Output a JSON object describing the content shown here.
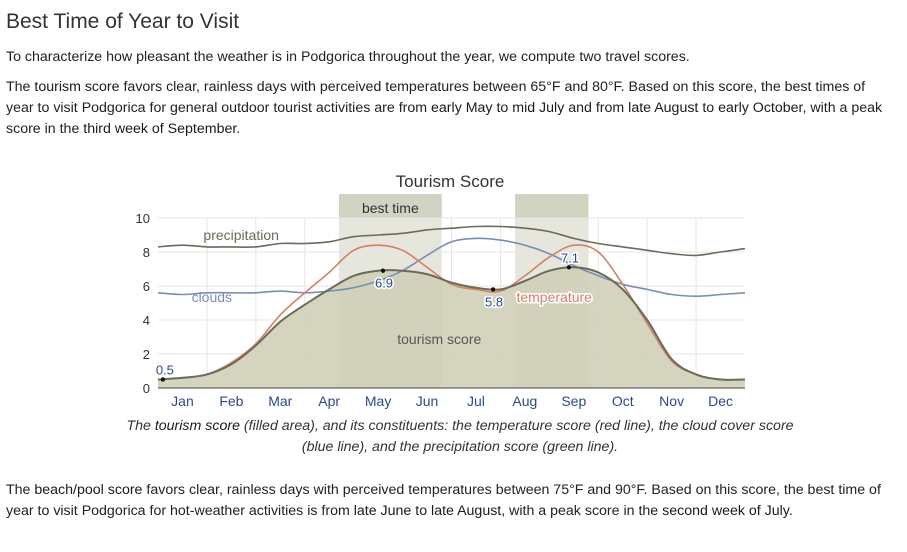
{
  "heading": "Best Time of Year to Visit",
  "intro": [
    "To characterize how pleasant the weather is in Podgorica throughout the year, we compute two travel scores."
  ],
  "tourism_paragraph": [
    "The ",
    "tourism score",
    " favors clear, rainless days with perceived temperatures between 65°F and 80°F. Based on this score, the best times of year to visit Podgorica for general outdoor tourist activities are from ",
    "early May",
    " to ",
    "mid July",
    " and from ",
    "late August",
    " to ",
    "early October",
    ", with a peak score in the ",
    "third week of September",
    "."
  ],
  "caption": [
    "The ",
    "tourism score",
    " (filled area), and its constituents: the temperature score (red line), the cloud cover score (blue line), and the precipitation score (green line)."
  ],
  "beach_paragraph": [
    "The ",
    "beach/pool score",
    " favors clear, rainless days with perceived temperatures between 75°F and 90°F. Based on this score, the best time of year to visit Podgorica for hot-weather activities is from ",
    "late June",
    " to ",
    "late August",
    ", with a peak score in the ",
    "second week of July",
    "."
  ],
  "chart_data": {
    "type": "area",
    "title": "Tourism Score",
    "months": [
      "Jan",
      "Feb",
      "Mar",
      "Apr",
      "May",
      "Jun",
      "Jul",
      "Aug",
      "Sep",
      "Oct",
      "Nov",
      "Dec"
    ],
    "x_range": [
      0,
      12
    ],
    "ylim": [
      0,
      10
    ],
    "y_ticks": [
      0,
      2,
      4,
      6,
      8,
      10
    ],
    "grid": true,
    "best_time_label": "best time",
    "best_time_ranges": [
      [
        3.7,
        5.8
      ],
      [
        7.3,
        8.8
      ]
    ],
    "series": [
      {
        "name": "precipitation",
        "color": "#6b6b5a",
        "x": [
          0,
          0.5,
          1,
          1.5,
          2,
          2.5,
          3,
          3.5,
          4,
          4.5,
          5,
          5.5,
          6,
          6.5,
          7,
          7.5,
          8,
          8.5,
          9,
          9.5,
          10,
          10.5,
          11,
          11.5,
          12
        ],
        "y": [
          8.3,
          8.4,
          8.3,
          8.3,
          8.3,
          8.5,
          8.5,
          8.6,
          8.9,
          9.0,
          9.1,
          9.3,
          9.4,
          9.5,
          9.5,
          9.4,
          9.2,
          8.8,
          8.5,
          8.3,
          8.1,
          7.9,
          7.8,
          8.0,
          8.2
        ]
      },
      {
        "name": "clouds",
        "color": "#7a8fb0",
        "x": [
          0,
          0.5,
          1,
          1.5,
          2,
          2.5,
          3,
          3.5,
          4,
          4.5,
          5,
          5.5,
          6,
          6.5,
          7,
          7.5,
          8,
          8.5,
          9,
          9.5,
          10,
          10.5,
          11,
          11.5,
          12
        ],
        "y": [
          5.6,
          5.5,
          5.6,
          5.6,
          5.6,
          5.7,
          5.6,
          5.7,
          5.9,
          6.3,
          6.9,
          7.8,
          8.6,
          8.8,
          8.7,
          8.4,
          7.9,
          7.2,
          6.6,
          6.1,
          5.8,
          5.5,
          5.4,
          5.5,
          5.6
        ]
      },
      {
        "name": "temperature",
        "color": "#d4806a",
        "x": [
          0,
          0.5,
          1,
          1.5,
          2,
          2.5,
          3,
          3.5,
          4,
          4.5,
          5,
          5.5,
          6,
          6.5,
          7,
          7.5,
          8,
          8.5,
          9,
          9.5,
          10,
          10.5,
          11,
          11.5,
          12
        ],
        "y": [
          0.5,
          0.6,
          0.8,
          1.5,
          2.6,
          4.3,
          5.6,
          6.8,
          8.1,
          8.4,
          8.1,
          7.1,
          6.1,
          5.8,
          5.7,
          6.6,
          7.7,
          8.4,
          8.0,
          6.1,
          3.8,
          1.6,
          0.8,
          0.5,
          0.5
        ]
      },
      {
        "name": "tourism score",
        "color": "#6b6b5a",
        "fill": "#cfcfb8",
        "x": [
          0,
          0.5,
          1,
          1.5,
          2,
          2.5,
          3,
          3.5,
          4,
          4.5,
          5,
          5.5,
          6,
          6.5,
          7,
          7.5,
          8,
          8.5,
          9,
          9.5,
          10,
          10.5,
          11,
          11.5,
          12
        ],
        "y": [
          0.5,
          0.6,
          0.8,
          1.4,
          2.5,
          3.9,
          4.9,
          5.8,
          6.6,
          6.9,
          6.9,
          6.7,
          6.2,
          5.9,
          5.8,
          6.3,
          6.9,
          7.1,
          6.8,
          5.8,
          4.0,
          1.7,
          0.8,
          0.5,
          0.5
        ]
      }
    ],
    "point_labels": [
      {
        "x": 0.1,
        "y": 0.5,
        "label": "0.5"
      },
      {
        "x": 4.6,
        "y": 6.9,
        "label": "6.9"
      },
      {
        "x": 6.85,
        "y": 5.8,
        "label": "5.8"
      },
      {
        "x": 8.4,
        "y": 7.1,
        "label": "7.1"
      }
    ],
    "series_labels": [
      {
        "text": "precipitation",
        "x": 1.7,
        "y": 8.7
      },
      {
        "text": "clouds",
        "x": 1.1,
        "y": 5.05
      },
      {
        "text": "temperature",
        "x": 8.1,
        "y": 5.05
      },
      {
        "text": "tourism score",
        "x": 5.75,
        "y": 2.6
      }
    ]
  }
}
